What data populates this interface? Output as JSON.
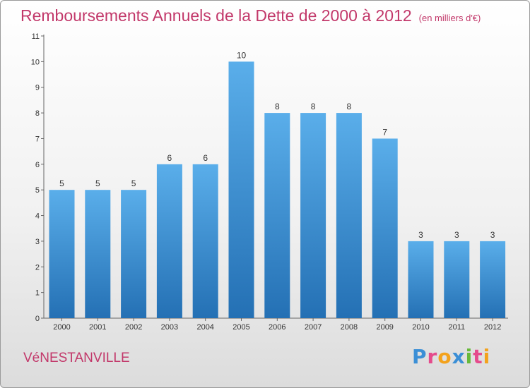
{
  "header": {
    "title": "Remboursements Annuels de la Dette de 2000 à 2012",
    "unit": "(en milliers d'€)"
  },
  "footer": {
    "commune": "VéNESTANVILLE",
    "logo": "Proxiti"
  },
  "colors": {
    "title": "#c2386a",
    "bar_top": "#5aaeea",
    "bar_bottom": "#2470b4"
  },
  "chart_data": {
    "type": "bar",
    "title": "Remboursements Annuels de la Dette de 2000 à 2012",
    "xlabel": "",
    "ylabel": "",
    "categories": [
      "2000",
      "2001",
      "2002",
      "2003",
      "2004",
      "2005",
      "2006",
      "2007",
      "2008",
      "2009",
      "2010",
      "2011",
      "2012"
    ],
    "values": [
      5,
      5,
      5,
      6,
      6,
      10,
      8,
      8,
      8,
      7,
      3,
      3,
      3
    ],
    "ylim": [
      0,
      11
    ],
    "yticks": [
      0,
      1,
      2,
      3,
      4,
      5,
      6,
      7,
      8,
      9,
      10,
      11
    ],
    "grid": false,
    "data_labels": true
  }
}
